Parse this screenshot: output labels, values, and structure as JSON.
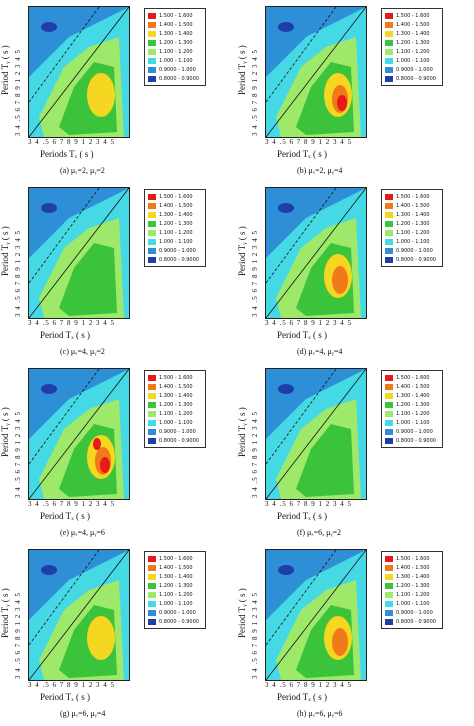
{
  "legend": [
    {
      "label": "1.500 - 1.600",
      "color": "#e61a1a"
    },
    {
      "label": "1.400 - 1.500",
      "color": "#f07a1a"
    },
    {
      "label": "1.300 - 1.400",
      "color": "#f5d620"
    },
    {
      "label": "1.200 - 1.300",
      "color": "#3cc33c"
    },
    {
      "label": "1.100 - 1.200",
      "color": "#9ee86a"
    },
    {
      "label": "1.000 - 1.100",
      "color": "#45d9e6"
    },
    {
      "label": "0.9000 - 1.000",
      "color": "#2f8fd6"
    },
    {
      "label": "0.8000 - 0.9000",
      "color": "#1f3ea8"
    }
  ],
  "ytick_text": "3  4 .5 6 7 8 9 1        2     3  4 5",
  "xtick_text": "3   4  .5 6 7 8 9 1      2   3  4  5",
  "panels": [
    {
      "id": "a",
      "ylabel": "Period Tᵧ ( s )",
      "xlabel": "Periods Tₓ ( s )",
      "caption": "(a)   μₓ=2,   μᵧ=2"
    },
    {
      "id": "b",
      "ylabel": "Period Tᵧ ( s )",
      "xlabel": "Period Tₓ ( s )",
      "caption": "(b)   μₓ=2,   μᵧ=4"
    },
    {
      "id": "c",
      "ylabel": "Period Tᵧ ( s )",
      "xlabel": "Period Tₓ ( s )",
      "caption": "(c)   μₓ=4,   μᵧ=2"
    },
    {
      "id": "d",
      "ylabel": "Period Tᵧ ( s )",
      "xlabel": "Period Tₓ ( s )",
      "caption": "(d)   μₓ=4,   μᵧ=4"
    },
    {
      "id": "e",
      "ylabel": "Period Tᵧ ( s )",
      "xlabel": "Period  Tₓ ( s )",
      "caption": "(e)   μₓ=4,   μᵧ=6"
    },
    {
      "id": "f",
      "ylabel": "Period Tᵧ ( s )",
      "xlabel": "Period Tₓ ( s )",
      "caption": "(f)   μₓ=6,   μᵧ=2"
    },
    {
      "id": "g",
      "ylabel": "Period Tᵧ ( s )",
      "xlabel": "Period  Tₓ ( s )",
      "caption": "(g)   μₓ=6,   μᵧ=4"
    },
    {
      "id": "h",
      "ylabel": "Period Tᵧ ( s )",
      "xlabel": "Period   Tₓ ( s )",
      "caption": "(h)   μₓ=6,   μᵧ=6"
    }
  ]
}
